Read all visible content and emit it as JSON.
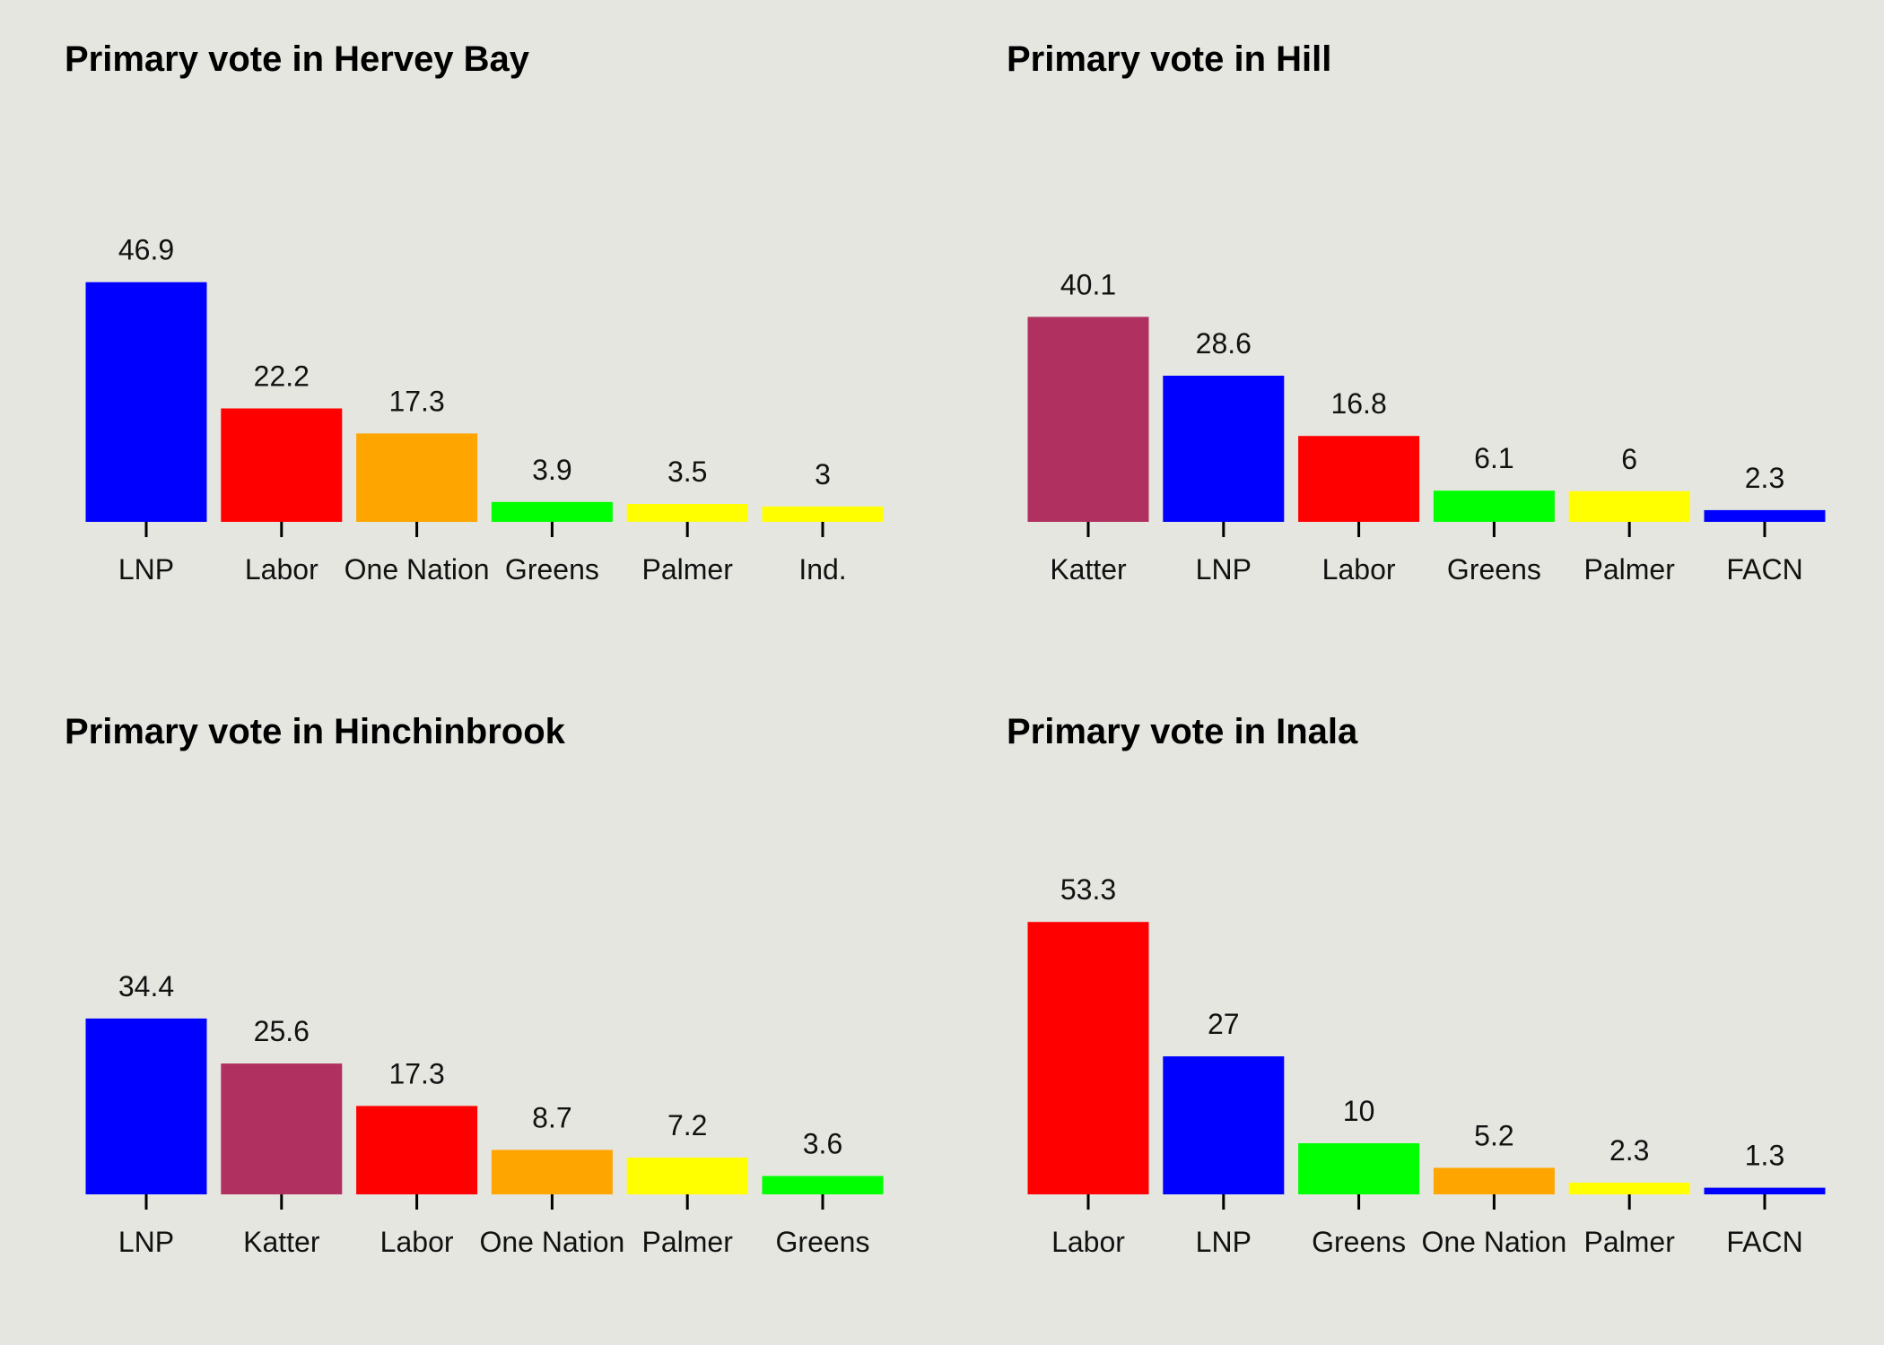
{
  "chart_data": [
    {
      "type": "bar",
      "title": "Primary vote in Hervey Bay",
      "categories": [
        "LNP",
        "Labor",
        "One Nation",
        "Greens",
        "Palmer",
        "Ind."
      ],
      "values": [
        46.9,
        22.2,
        17.3,
        3.9,
        3.5,
        3
      ],
      "value_labels": [
        "46.9",
        "22.2",
        "17.3",
        "3.9",
        "3.5",
        "3"
      ],
      "colors": [
        "#0000ff",
        "#ff0000",
        "#ffa500",
        "#00ff00",
        "#ffff00",
        "#ffff00"
      ],
      "xlabel": "",
      "ylabel": "",
      "grid": false,
      "legend": "none"
    },
    {
      "type": "bar",
      "title": "Primary vote in Hill",
      "categories": [
        "Katter",
        "LNP",
        "Labor",
        "Greens",
        "Palmer",
        "FACN"
      ],
      "values": [
        40.1,
        28.6,
        16.8,
        6.1,
        6,
        2.3
      ],
      "value_labels": [
        "40.1",
        "28.6",
        "16.8",
        "6.1",
        "6",
        "2.3"
      ],
      "colors": [
        "#b03060",
        "#0000ff",
        "#ff0000",
        "#00ff00",
        "#ffff00",
        "#0000ff"
      ],
      "xlabel": "",
      "ylabel": "",
      "grid": false,
      "legend": "none"
    },
    {
      "type": "bar",
      "title": "Primary vote in Hinchinbrook",
      "categories": [
        "LNP",
        "Katter",
        "Labor",
        "One Nation",
        "Palmer",
        "Greens"
      ],
      "values": [
        34.4,
        25.6,
        17.3,
        8.7,
        7.2,
        3.6
      ],
      "value_labels": [
        "34.4",
        "25.6",
        "17.3",
        "8.7",
        "7.2",
        "3.6"
      ],
      "colors": [
        "#0000ff",
        "#b03060",
        "#ff0000",
        "#ffa500",
        "#ffff00",
        "#00ff00"
      ],
      "xlabel": "",
      "ylabel": "",
      "grid": false,
      "legend": "none"
    },
    {
      "type": "bar",
      "title": "Primary vote in Inala",
      "categories": [
        "Labor",
        "LNP",
        "Greens",
        "One Nation",
        "Palmer",
        "FACN"
      ],
      "values": [
        53.3,
        27,
        10,
        5.2,
        2.3,
        1.3
      ],
      "value_labels": [
        "53.3",
        "27",
        "10",
        "5.2",
        "2.3",
        "1.3"
      ],
      "colors": [
        "#ff0000",
        "#0000ff",
        "#00ff00",
        "#ffa500",
        "#ffff00",
        "#0000ff"
      ],
      "xlabel": "",
      "ylabel": "",
      "grid": false,
      "legend": "none"
    }
  ]
}
